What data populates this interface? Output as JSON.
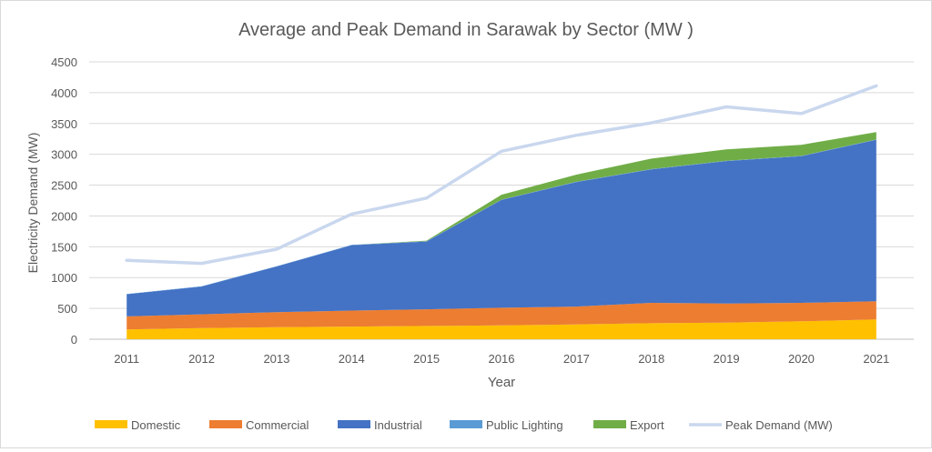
{
  "chart_data": {
    "type": "area",
    "title": "Average and Peak Demand in Sarawak by Sector (MW )",
    "xlabel": "Year",
    "ylabel": "Electricity Demand (MW)",
    "ylim": [
      0,
      4500
    ],
    "yticks": [
      0,
      500,
      1000,
      1500,
      2000,
      2500,
      3000,
      3500,
      4000,
      4500
    ],
    "grid": true,
    "legend_position": "bottom",
    "categories": [
      "2011",
      "2012",
      "2013",
      "2014",
      "2015",
      "2016",
      "2017",
      "2018",
      "2019",
      "2020",
      "2021"
    ],
    "stacked_series": [
      {
        "name": "Domestic",
        "color": "#FFC000",
        "values": [
          160,
          180,
          195,
          205,
          215,
          225,
          240,
          260,
          270,
          290,
          320
        ]
      },
      {
        "name": "Commercial",
        "color": "#ED7D31",
        "values": [
          210,
          225,
          245,
          260,
          270,
          285,
          290,
          330,
          310,
          300,
          295
        ]
      },
      {
        "name": "Industrial",
        "color": "#4472C4",
        "values": [
          360,
          450,
          740,
          1060,
          1100,
          1750,
          2020,
          2165,
          2310,
          2380,
          2620
        ]
      },
      {
        "name": "Public Lighting",
        "color": "#5B9BD5",
        "values": [
          5,
          5,
          5,
          5,
          5,
          5,
          5,
          5,
          5,
          5,
          5
        ]
      },
      {
        "name": "Export",
        "color": "#70AD47",
        "values": [
          0,
          0,
          0,
          0,
          10,
          80,
          115,
          170,
          185,
          180,
          120
        ]
      }
    ],
    "line_series": [
      {
        "name": "Peak Demand (MW)",
        "color": "#C9D7EE",
        "values": [
          1280,
          1230,
          1460,
          2030,
          2290,
          3050,
          3310,
          3510,
          3770,
          3660,
          4110
        ]
      }
    ]
  }
}
